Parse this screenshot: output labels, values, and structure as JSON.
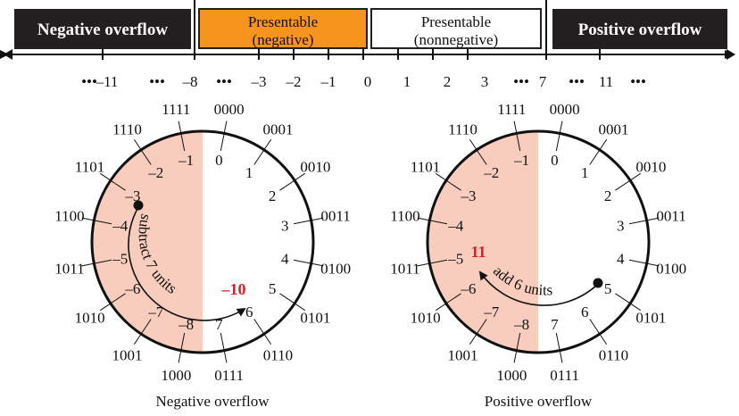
{
  "number_line": {
    "regions": {
      "negative_overflow": "Negative overflow",
      "presentable_negative": [
        "Presentable",
        "(negative)"
      ],
      "presentable_nonnegative": [
        "Presentable",
        "(nonnegative)"
      ],
      "positive_overflow": "Positive overflow"
    },
    "tick_labels": [
      "•••",
      "–11",
      "•••",
      "–8",
      "•••",
      "–3",
      "–2",
      "–1",
      "0",
      "1",
      "2",
      "3",
      "•••",
      "7",
      "•••",
      "11",
      "•••"
    ],
    "colors": {
      "overflow": "#231f20",
      "negative": "#f7941d",
      "nonnegative": "#ffffff"
    }
  },
  "wheel": {
    "binary": [
      "0000",
      "0001",
      "0010",
      "0011",
      "0100",
      "0101",
      "0110",
      "0111",
      "1000",
      "1001",
      "1010",
      "1011",
      "1100",
      "1101",
      "1110",
      "1111"
    ],
    "values": [
      "0",
      "1",
      "2",
      "3",
      "4",
      "5",
      "6",
      "7",
      "–8",
      "–7",
      "–6",
      "–5",
      "–4",
      "–3",
      "–2",
      "–1"
    ],
    "negative_fill": "#f9cdbd"
  },
  "left_diagram": {
    "arrow_label": "subtract 7 units",
    "result": "–10",
    "caption": "Negative overflow"
  },
  "right_diagram": {
    "arrow_label": "add 6 units",
    "result": "11",
    "caption": "Positive overflow"
  },
  "result_color": "#e31b23"
}
